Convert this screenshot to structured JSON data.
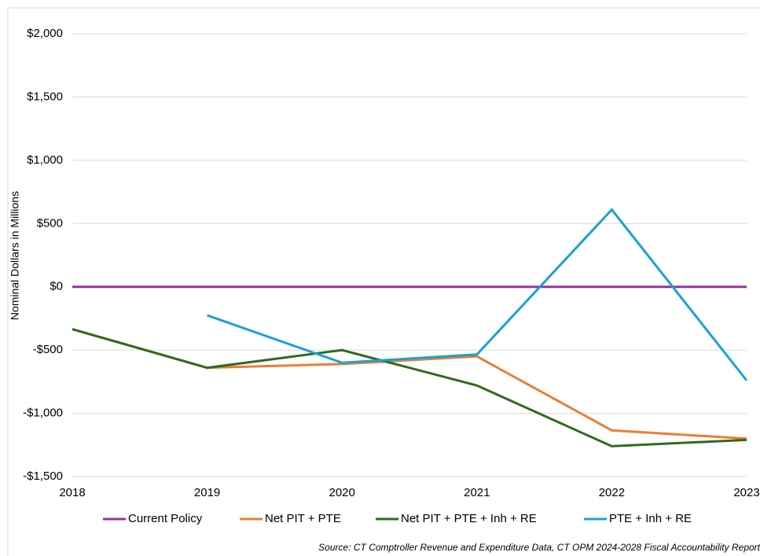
{
  "chart_data": {
    "type": "line",
    "y_label": "Nominal Dollars in Millions",
    "source": "Source: CT Comptroller Revenue and Expenditure Data, CT OPM 2024-2028 Fiscal Accountability Report",
    "categories": [
      "2018",
      "2019",
      "2020",
      "2021",
      "2022",
      "2023"
    ],
    "ylim": [
      -1500,
      2000
    ],
    "yticks": [
      {
        "value": -1500,
        "label": "-$1,500"
      },
      {
        "value": -1000,
        "label": "-$1,000"
      },
      {
        "value": -500,
        "label": "-$500"
      },
      {
        "value": 0,
        "label": "$0"
      },
      {
        "value": 500,
        "label": "$500"
      },
      {
        "value": 1000,
        "label": "$1,000"
      },
      {
        "value": 1500,
        "label": "$1,500"
      },
      {
        "value": 2000,
        "label": "$2,000"
      }
    ],
    "grid": true,
    "legend": "bottom",
    "series": [
      {
        "name": "Current Policy",
        "color": "#9b30a0",
        "values": [
          0,
          0,
          0,
          0,
          0,
          0
        ]
      },
      {
        "name": "Net PIT + PTE",
        "color": "#ed7d31",
        "values": [
          -335,
          -640,
          -610,
          -550,
          -1135,
          -1200
        ]
      },
      {
        "name": "Net PIT + PTE + Inh + RE",
        "color": "#2e6b1f",
        "values": [
          -335,
          -640,
          -500,
          -780,
          -1260,
          -1210
        ]
      },
      {
        "name": "PTE + Inh + RE",
        "color": "#1ba1d6",
        "values": [
          null,
          -225,
          -600,
          -535,
          610,
          -740
        ]
      }
    ]
  }
}
